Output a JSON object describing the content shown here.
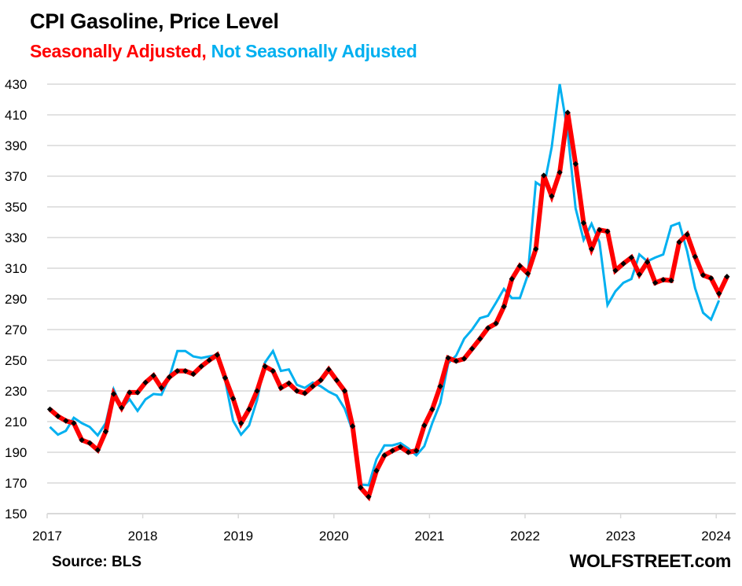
{
  "header": {
    "title": "CPI Gasoline, Price Level",
    "subtitle_sa": "Seasonally Adjusted,",
    "subtitle_nsa": "Not Seasonally Adjusted"
  },
  "footer": {
    "source": "Source: BLS",
    "brand": "WOLFSTREET.com"
  },
  "colors": {
    "seasonally_adjusted": "#ff0000",
    "seasonally_adjusted_markers": "#000000",
    "not_seasonally_adjusted": "#00b0f0",
    "gridline": "#d9d9d9"
  },
  "chart_data": {
    "type": "line",
    "title": "CPI Gasoline, Price Level",
    "subtitle": "Seasonally Adjusted, Not Seasonally Adjusted",
    "xlabel": "",
    "ylabel": "",
    "x_start": "2017-01",
    "x_frequency": "monthly",
    "x_ticks": [
      "2017",
      "2018",
      "2019",
      "2020",
      "2021",
      "2022",
      "2023",
      "2024"
    ],
    "y_ticks": [
      150,
      170,
      190,
      210,
      230,
      250,
      270,
      290,
      310,
      330,
      350,
      370,
      390,
      410,
      430
    ],
    "ylim": [
      150,
      430
    ],
    "grid": true,
    "legend": "subtitle",
    "series": [
      {
        "name": "Seasonally Adjusted",
        "color": "#ff0000",
        "markers": true,
        "values": [
          218,
          213.5,
          210.5,
          209,
          198,
          196,
          191.5,
          203.5,
          228,
          219,
          229,
          229,
          235.5,
          240,
          232,
          239,
          243,
          243,
          241,
          246,
          250,
          253.5,
          238.5,
          225,
          209,
          218,
          230,
          246,
          243,
          232,
          235,
          230,
          228.5,
          233,
          237,
          244,
          237,
          230,
          207,
          167,
          161,
          178,
          188,
          191,
          193.5,
          190,
          191,
          207.5,
          218,
          233,
          251.5,
          249.5,
          251,
          257.5,
          264,
          271,
          274,
          285,
          303,
          311.5,
          306.5,
          322.5,
          370.5,
          357,
          372.5,
          411.5,
          378,
          339.5,
          322.5,
          335,
          334,
          308.5,
          313,
          317,
          306,
          314,
          300.5,
          302.5,
          302,
          327,
          332,
          317.5,
          305.5,
          303.5,
          293.5,
          304.5
        ]
      },
      {
        "name": "Not Seasonally Adjusted",
        "color": "#00b0f0",
        "markers": false,
        "values": [
          206.5,
          201.5,
          204,
          212.5,
          209,
          206.5,
          201,
          209,
          231,
          219,
          224.5,
          217,
          224.5,
          228,
          227.5,
          239,
          256,
          256,
          252.5,
          251.5,
          252.5,
          253.5,
          237,
          210.5,
          201.5,
          207.5,
          224,
          248.5,
          256,
          243,
          244,
          234,
          232,
          235.5,
          233,
          229.5,
          227,
          218.5,
          204,
          169,
          168.5,
          185.5,
          194.5,
          194.5,
          196,
          192.5,
          188,
          194,
          209,
          222,
          248,
          253,
          264,
          270,
          277.5,
          279,
          287.5,
          296.5,
          290.5,
          290.5,
          305.5,
          366,
          362.5,
          389,
          430,
          399,
          349,
          328.5,
          339,
          327,
          286,
          295,
          300.5,
          303,
          319,
          314.5,
          317,
          319,
          337.5,
          339.5,
          321,
          297,
          281,
          276.5,
          289
        ]
      }
    ]
  }
}
